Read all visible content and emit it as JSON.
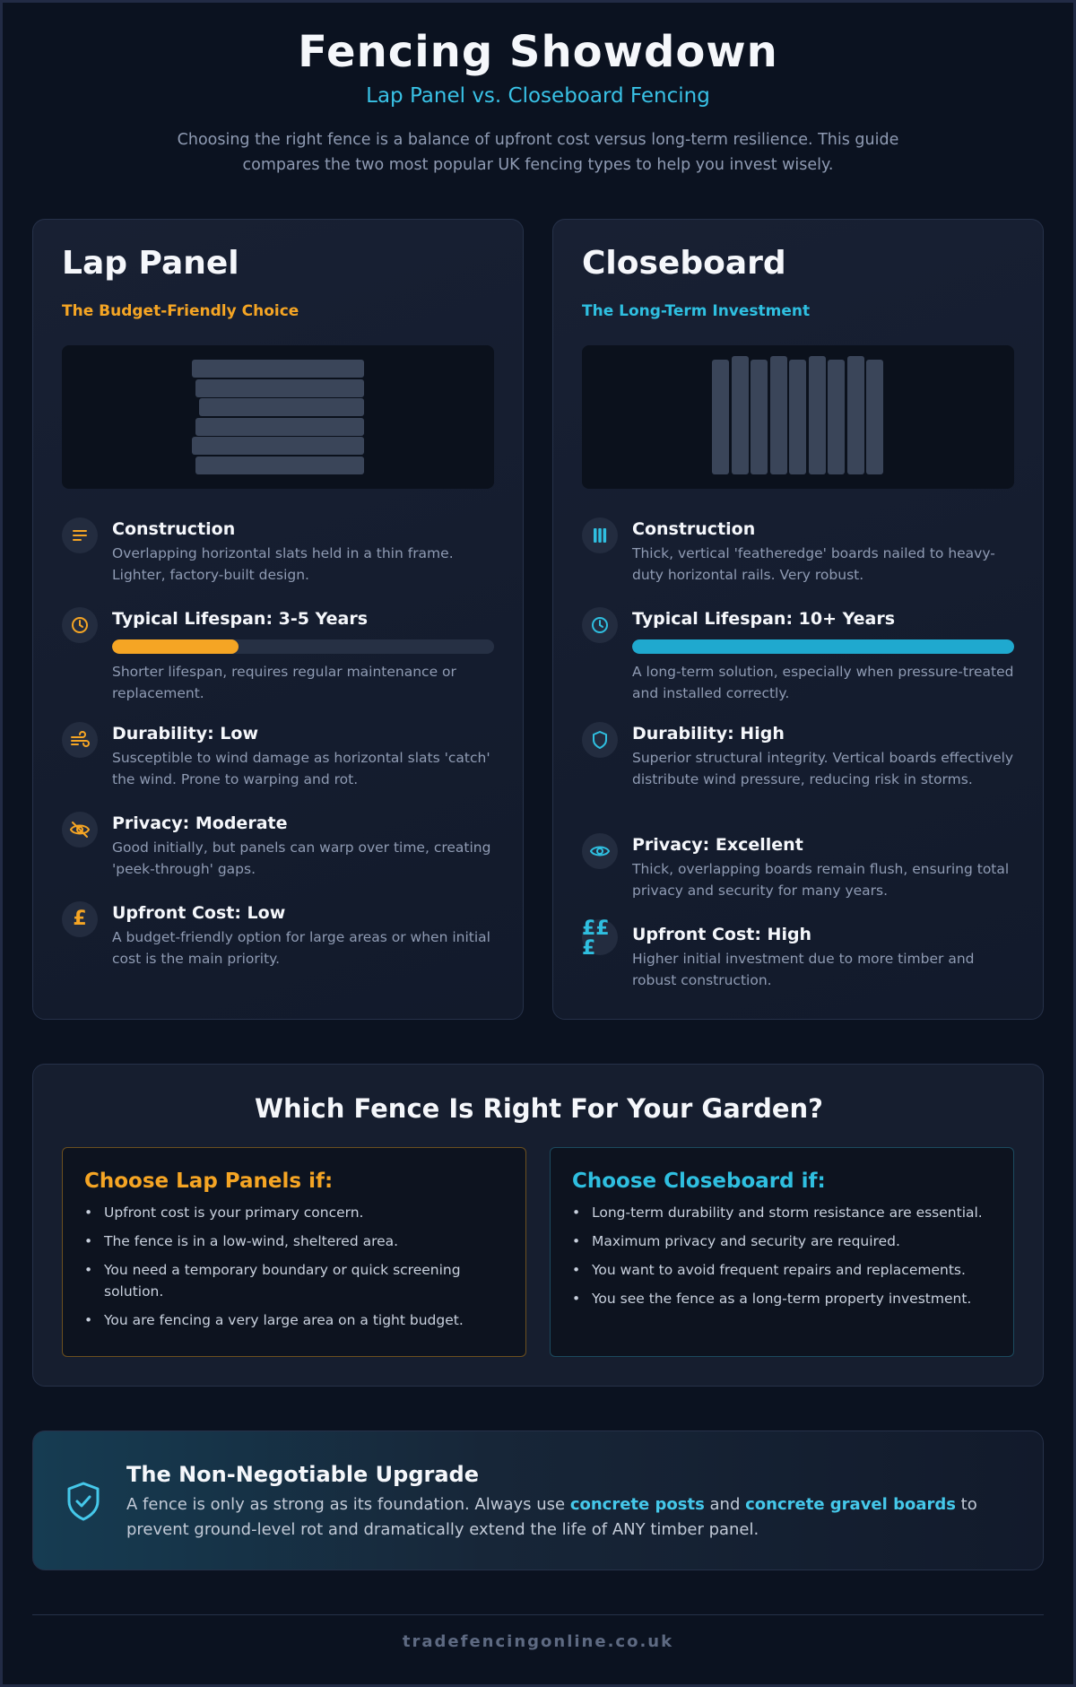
{
  "header": {
    "title": "Fencing Showdown",
    "subtitle": "Lap Panel vs. Closeboard Fencing",
    "intro": "Choosing the right fence is a balance of upfront cost versus long-term resilience. This guide compares the two most popular UK fencing types to help you invest wisely."
  },
  "colors": {
    "orange": "#f5a524",
    "cyan": "#2fbfe0",
    "background": "#0b1220"
  },
  "lap": {
    "title": "Lap Panel",
    "tagline": "The Budget-Friendly Choice",
    "construction": {
      "icon": "lines-icon",
      "title": "Construction",
      "desc": "Overlapping horizontal slats held in a thin frame. Lighter, factory-built design."
    },
    "lifespan": {
      "icon": "clock-icon",
      "title": "Typical Lifespan: 3-5 Years",
      "fill_fraction": 0.33,
      "desc": "Shorter lifespan, requires regular maintenance or replacement."
    },
    "durability": {
      "icon": "wind-icon",
      "title": "Durability: Low",
      "desc": "Susceptible to wind damage as horizontal slats 'catch' the wind. Prone to warping and rot."
    },
    "privacy": {
      "icon": "eye-off-icon",
      "title": "Privacy: Moderate",
      "desc": "Good initially, but panels can warp over time, creating 'peek-through' gaps."
    },
    "cost": {
      "icon": "pound-icon",
      "symbol": "£",
      "title": "Upfront Cost: Low",
      "desc": "A budget-friendly option for large areas or when initial cost is the main priority."
    }
  },
  "close": {
    "title": "Closeboard",
    "tagline": "The Long-Term Investment",
    "construction": {
      "icon": "vertical-bars-icon",
      "title": "Construction",
      "desc": "Thick, vertical 'featheredge' boards nailed to heavy-duty horizontal rails. Very robust."
    },
    "lifespan": {
      "icon": "clock-icon",
      "title": "Typical Lifespan: 10+ Years",
      "fill_fraction": 1.0,
      "desc": "A long-term solution, especially when pressure-treated and installed correctly."
    },
    "durability": {
      "icon": "shield-icon",
      "title": "Durability: High",
      "desc": "Superior structural integrity. Vertical boards effectively distribute wind pressure, reducing risk in storms."
    },
    "privacy": {
      "icon": "eye-icon",
      "title": "Privacy: Excellent",
      "desc": "Thick, overlapping boards remain flush, ensuring total privacy and security for many years."
    },
    "cost": {
      "icon": "pound-icon",
      "symbol_top": "££",
      "symbol_bottom": "£",
      "title": "Upfront Cost: High",
      "desc": "Higher initial investment due to more timber and robust construction."
    }
  },
  "choose": {
    "title": "Which Fence Is Right For Your Garden?",
    "lap_title": "Choose Lap Panels if:",
    "lap_items": [
      "Upfront cost is your primary concern.",
      "The fence is in a low-wind, sheltered area.",
      "You need a temporary boundary or quick screening solution.",
      "You are fencing a very large area on a tight budget."
    ],
    "close_title": "Choose Closeboard if:",
    "close_items": [
      "Long-term durability and storm resistance are essential.",
      "Maximum privacy and security are required.",
      "You want to avoid frequent repairs and replacements.",
      "You see the fence as a long-term property investment."
    ]
  },
  "upgrade": {
    "icon": "shield-check-icon",
    "title": "The Non-Negotiable Upgrade",
    "text_1": "A fence is only as strong as its foundation. Always use ",
    "highlight_1": "concrete posts",
    "text_2": " and ",
    "highlight_2": "concrete gravel boards",
    "text_3": " to prevent ground-level rot and dramatically extend the life of ANY timber panel."
  },
  "footer": {
    "site": "tradefencingonline.co.uk"
  }
}
